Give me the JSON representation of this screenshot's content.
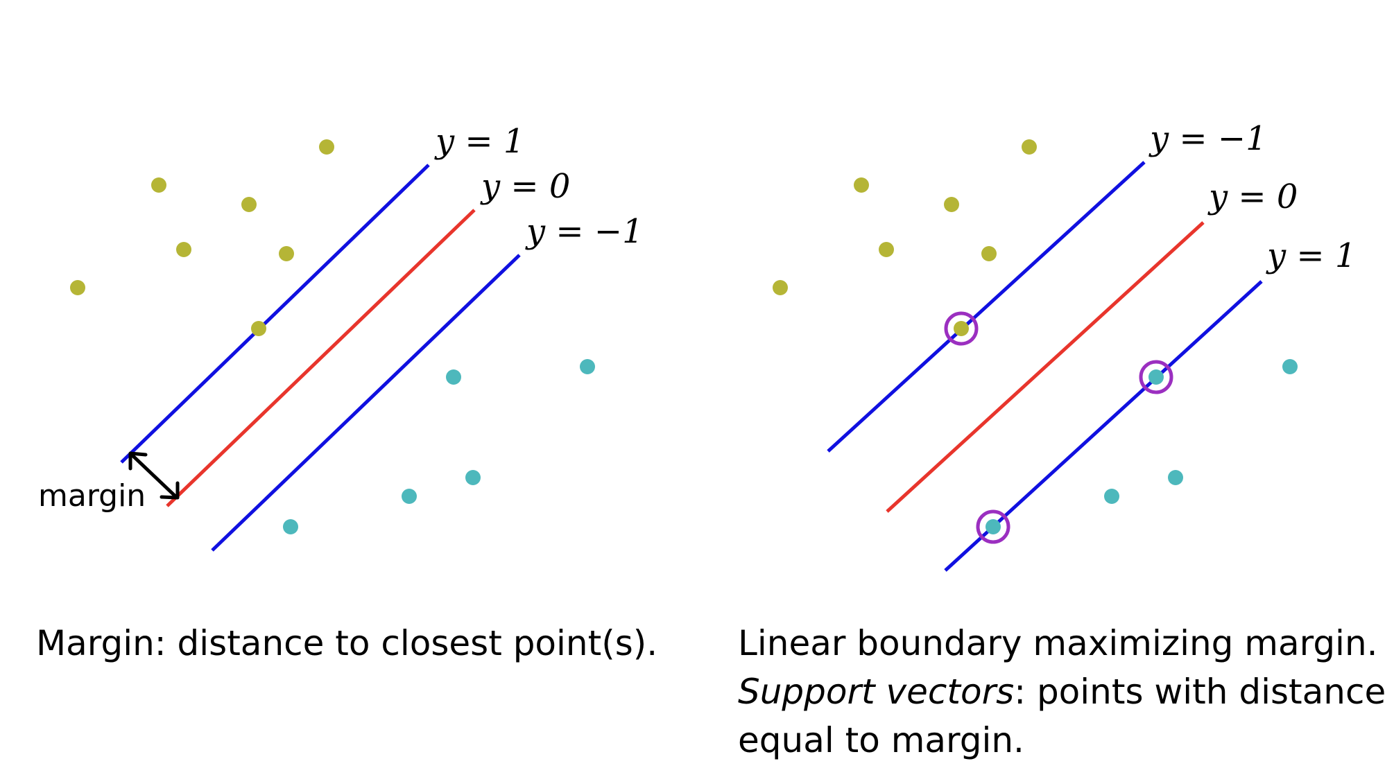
{
  "colors": {
    "class_a": "#b5b536",
    "class_b": "#4db8bc",
    "margin_line": "#1010e0",
    "decision_line": "#e8352c",
    "support_ring": "#9b2fc0",
    "arrow": "#000000"
  },
  "panels": [
    {
      "id": "left",
      "line_labels": {
        "upper": "y = 1",
        "middle": "y = 0",
        "lower": "y = −1"
      },
      "margin_annotation": "margin",
      "caption": "Margin: distance to closest point(s)."
    },
    {
      "id": "right",
      "line_labels": {
        "upper": "y = −1",
        "middle": "y = 0",
        "lower": "y = 1"
      },
      "caption_line1": "Linear boundary maximizing margin.",
      "caption_line2_em": "Support vectors",
      "caption_line2_rest": ": points with distance",
      "caption_line3": "equal to margin."
    }
  ]
}
